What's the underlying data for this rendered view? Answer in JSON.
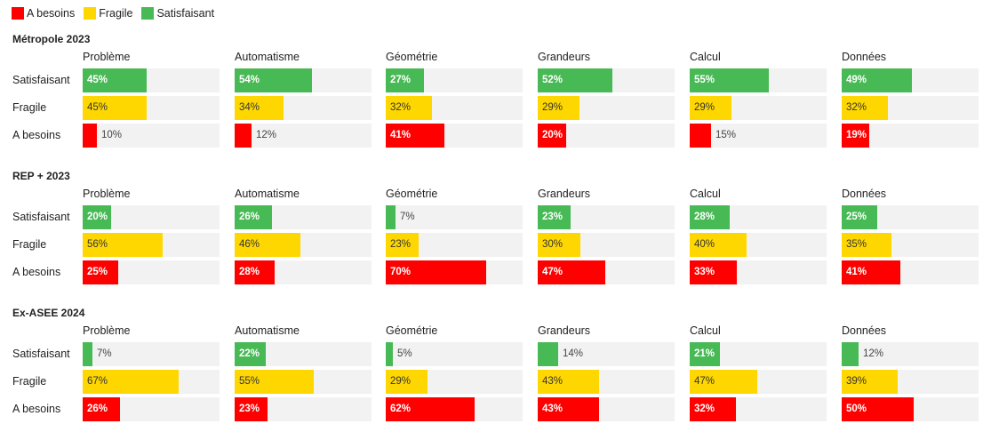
{
  "legend": [
    {
      "label": "A besoins",
      "color": "#ff0000"
    },
    {
      "label": "Fragile",
      "color": "#ffd700"
    },
    {
      "label": "Satisfaisant",
      "color": "#47b955"
    }
  ],
  "colors": {
    "Satisfaisant": "#47b955",
    "Fragile": "#ffd700",
    "A besoins": "#ff0000",
    "track": "#f2f2f2"
  },
  "chart_data": [
    {
      "type": "bar",
      "title": "Métropole 2023",
      "categories": [
        "Problème",
        "Automatisme",
        "Géométrie",
        "Grandeurs",
        "Calcul",
        "Données"
      ],
      "series": [
        {
          "name": "Satisfaisant",
          "values": [
            45,
            54,
            27,
            52,
            55,
            49
          ]
        },
        {
          "name": "Fragile",
          "values": [
            45,
            34,
            32,
            29,
            29,
            32
          ]
        },
        {
          "name": "A besoins",
          "values": [
            10,
            12,
            41,
            20,
            15,
            19
          ]
        }
      ],
      "ylim": [
        0,
        100
      ]
    },
    {
      "type": "bar",
      "title": "REP + 2023",
      "categories": [
        "Problème",
        "Automatisme",
        "Géométrie",
        "Grandeurs",
        "Calcul",
        "Données"
      ],
      "series": [
        {
          "name": "Satisfaisant",
          "values": [
            20,
            26,
            7,
            23,
            28,
            25
          ]
        },
        {
          "name": "Fragile",
          "values": [
            56,
            46,
            23,
            30,
            40,
            35
          ]
        },
        {
          "name": "A besoins",
          "values": [
            25,
            28,
            70,
            47,
            33,
            41
          ]
        }
      ],
      "ylim": [
        0,
        100
      ]
    },
    {
      "type": "bar",
      "title": "Ex-ASEE 2024",
      "categories": [
        "Problème",
        "Automatisme",
        "Géométrie",
        "Grandeurs",
        "Calcul",
        "Données"
      ],
      "series": [
        {
          "name": "Satisfaisant",
          "values": [
            7,
            22,
            5,
            14,
            21,
            12
          ]
        },
        {
          "name": "Fragile",
          "values": [
            67,
            55,
            29,
            43,
            47,
            39
          ]
        },
        {
          "name": "A besoins",
          "values": [
            26,
            23,
            62,
            43,
            32,
            50
          ]
        }
      ],
      "ylim": [
        0,
        100
      ]
    }
  ]
}
